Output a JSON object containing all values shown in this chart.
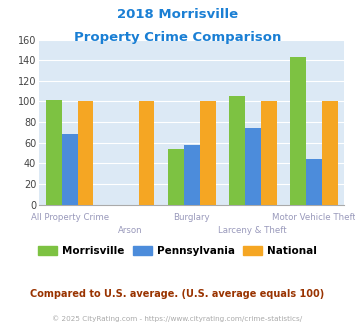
{
  "title_line1": "2018 Morrisville",
  "title_line2": "Property Crime Comparison",
  "categories": [
    "All Property Crime",
    "Arson",
    "Burglary",
    "Larceny & Theft",
    "Motor Vehicle Theft"
  ],
  "morrisville": [
    101,
    0,
    54,
    105,
    143
  ],
  "pennsylvania": [
    68,
    0,
    58,
    74,
    44
  ],
  "national": [
    100,
    100,
    100,
    100,
    100
  ],
  "color_morrisville": "#7dc242",
  "color_pennsylvania": "#4c8cdb",
  "color_national": "#f5a623",
  "ylim": [
    0,
    160
  ],
  "yticks": [
    0,
    20,
    40,
    60,
    80,
    100,
    120,
    140,
    160
  ],
  "fig_bg_color": "#ffffff",
  "plot_bg": "#dce9f5",
  "title_color": "#1a7fd4",
  "cat_label_color": "#9999bb",
  "legend_morrisville": "Morrisville",
  "legend_pennsylvania": "Pennsylvania",
  "legend_national": "National",
  "footer_text": "Compared to U.S. average. (U.S. average equals 100)",
  "copyright_text": "© 2025 CityRating.com - https://www.cityrating.com/crime-statistics/",
  "footer_color": "#993300",
  "copyright_color": "#aaaaaa"
}
